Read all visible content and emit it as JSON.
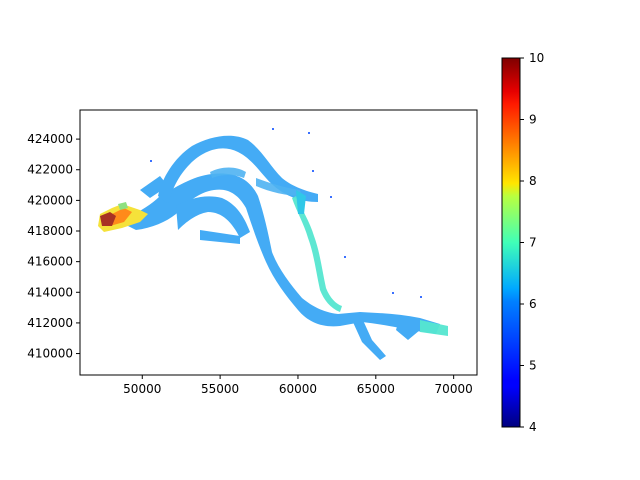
{
  "chart_data": {
    "type": "heatmap",
    "title": "",
    "xlabel": "",
    "ylabel": "",
    "xlim": [
      46000,
      71500
    ],
    "ylim": [
      408600,
      425900
    ],
    "x_ticks": [
      50000,
      55000,
      60000,
      65000,
      70000
    ],
    "y_ticks": [
      410000,
      412000,
      414000,
      416000,
      418000,
      420000,
      422000,
      424000
    ],
    "colormap": "jet",
    "colorbar": {
      "min": 4,
      "max": 10,
      "ticks": [
        4,
        5,
        6,
        7,
        8,
        9,
        10
      ]
    },
    "colors": {
      "channel_main": "#3aa7f5",
      "channel_light": "#4fb3f2",
      "channel_cyan": "#55e6d0",
      "channel_teal": "#2fc8e8",
      "hot_yellow": "#f5e23a",
      "hot_orange": "#ff8a1a",
      "hot_red": "#a83224",
      "hot_green": "#8ee080"
    }
  }
}
